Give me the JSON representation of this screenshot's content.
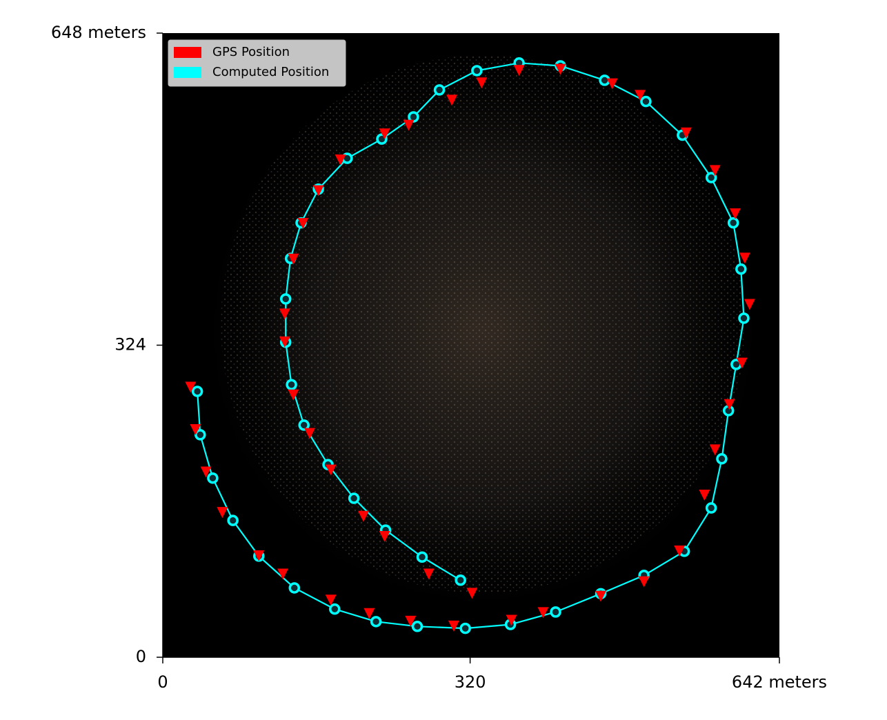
{
  "chart_data": {
    "type": "scatter",
    "xlim": [
      0,
      642
    ],
    "ylim": [
      0,
      648
    ],
    "xticks": [
      0,
      320,
      {
        "value": 642,
        "label": "642 meters"
      }
    ],
    "yticks": [
      0,
      324,
      {
        "value": 648,
        "label": "648 meters"
      }
    ],
    "legend": "upper left",
    "series": [
      {
        "name": "GPS Position",
        "color": "#ff0000",
        "marker": "triangle-down",
        "line": false,
        "x": [
          29,
          34,
          45,
          62,
          100,
          125,
          175,
          215,
          258,
          303,
          363,
          396,
          456,
          501,
          538,
          564,
          575,
          590,
          603,
          611,
          606,
          596,
          575,
          545,
          497,
          468,
          414,
          371,
          332,
          301,
          256,
          231,
          185,
          162,
          146,
          136,
          127,
          127,
          136,
          153,
          175,
          209,
          231,
          277,
          322
        ],
        "values": [
          281,
          237,
          193,
          151,
          106,
          87,
          60,
          46,
          38,
          33,
          39,
          47,
          64,
          79,
          111,
          169,
          216,
          263,
          306,
          367,
          415,
          461,
          506,
          545,
          584,
          596,
          611,
          610,
          597,
          579,
          553,
          544,
          517,
          485,
          451,
          414,
          357,
          328,
          273,
          233,
          195,
          147,
          126,
          87,
          67
        ]
      },
      {
        "name": "Computed Position",
        "color": "#00ffff",
        "marker": "circle",
        "line": true,
        "x": [
          36,
          39,
          52,
          73,
          100,
          137,
          179,
          222,
          265,
          315,
          362,
          409,
          456,
          501,
          543,
          571,
          582,
          589,
          597,
          605,
          602,
          594,
          571,
          541,
          503,
          460,
          414,
          371,
          327,
          288,
          261,
          228,
          192,
          162,
          144,
          133,
          128,
          128,
          134,
          147,
          172,
          199,
          232,
          270,
          310
        ],
        "values": [
          276,
          231,
          186,
          142,
          105,
          72,
          50,
          37,
          32,
          30,
          34,
          47,
          66,
          85,
          110,
          155,
          206,
          256,
          304,
          352,
          403,
          451,
          498,
          542,
          577,
          599,
          614,
          617,
          609,
          589,
          561,
          538,
          518,
          486,
          451,
          414,
          372,
          327,
          283,
          241,
          200,
          165,
          132,
          104,
          80
        ]
      }
    ]
  }
}
